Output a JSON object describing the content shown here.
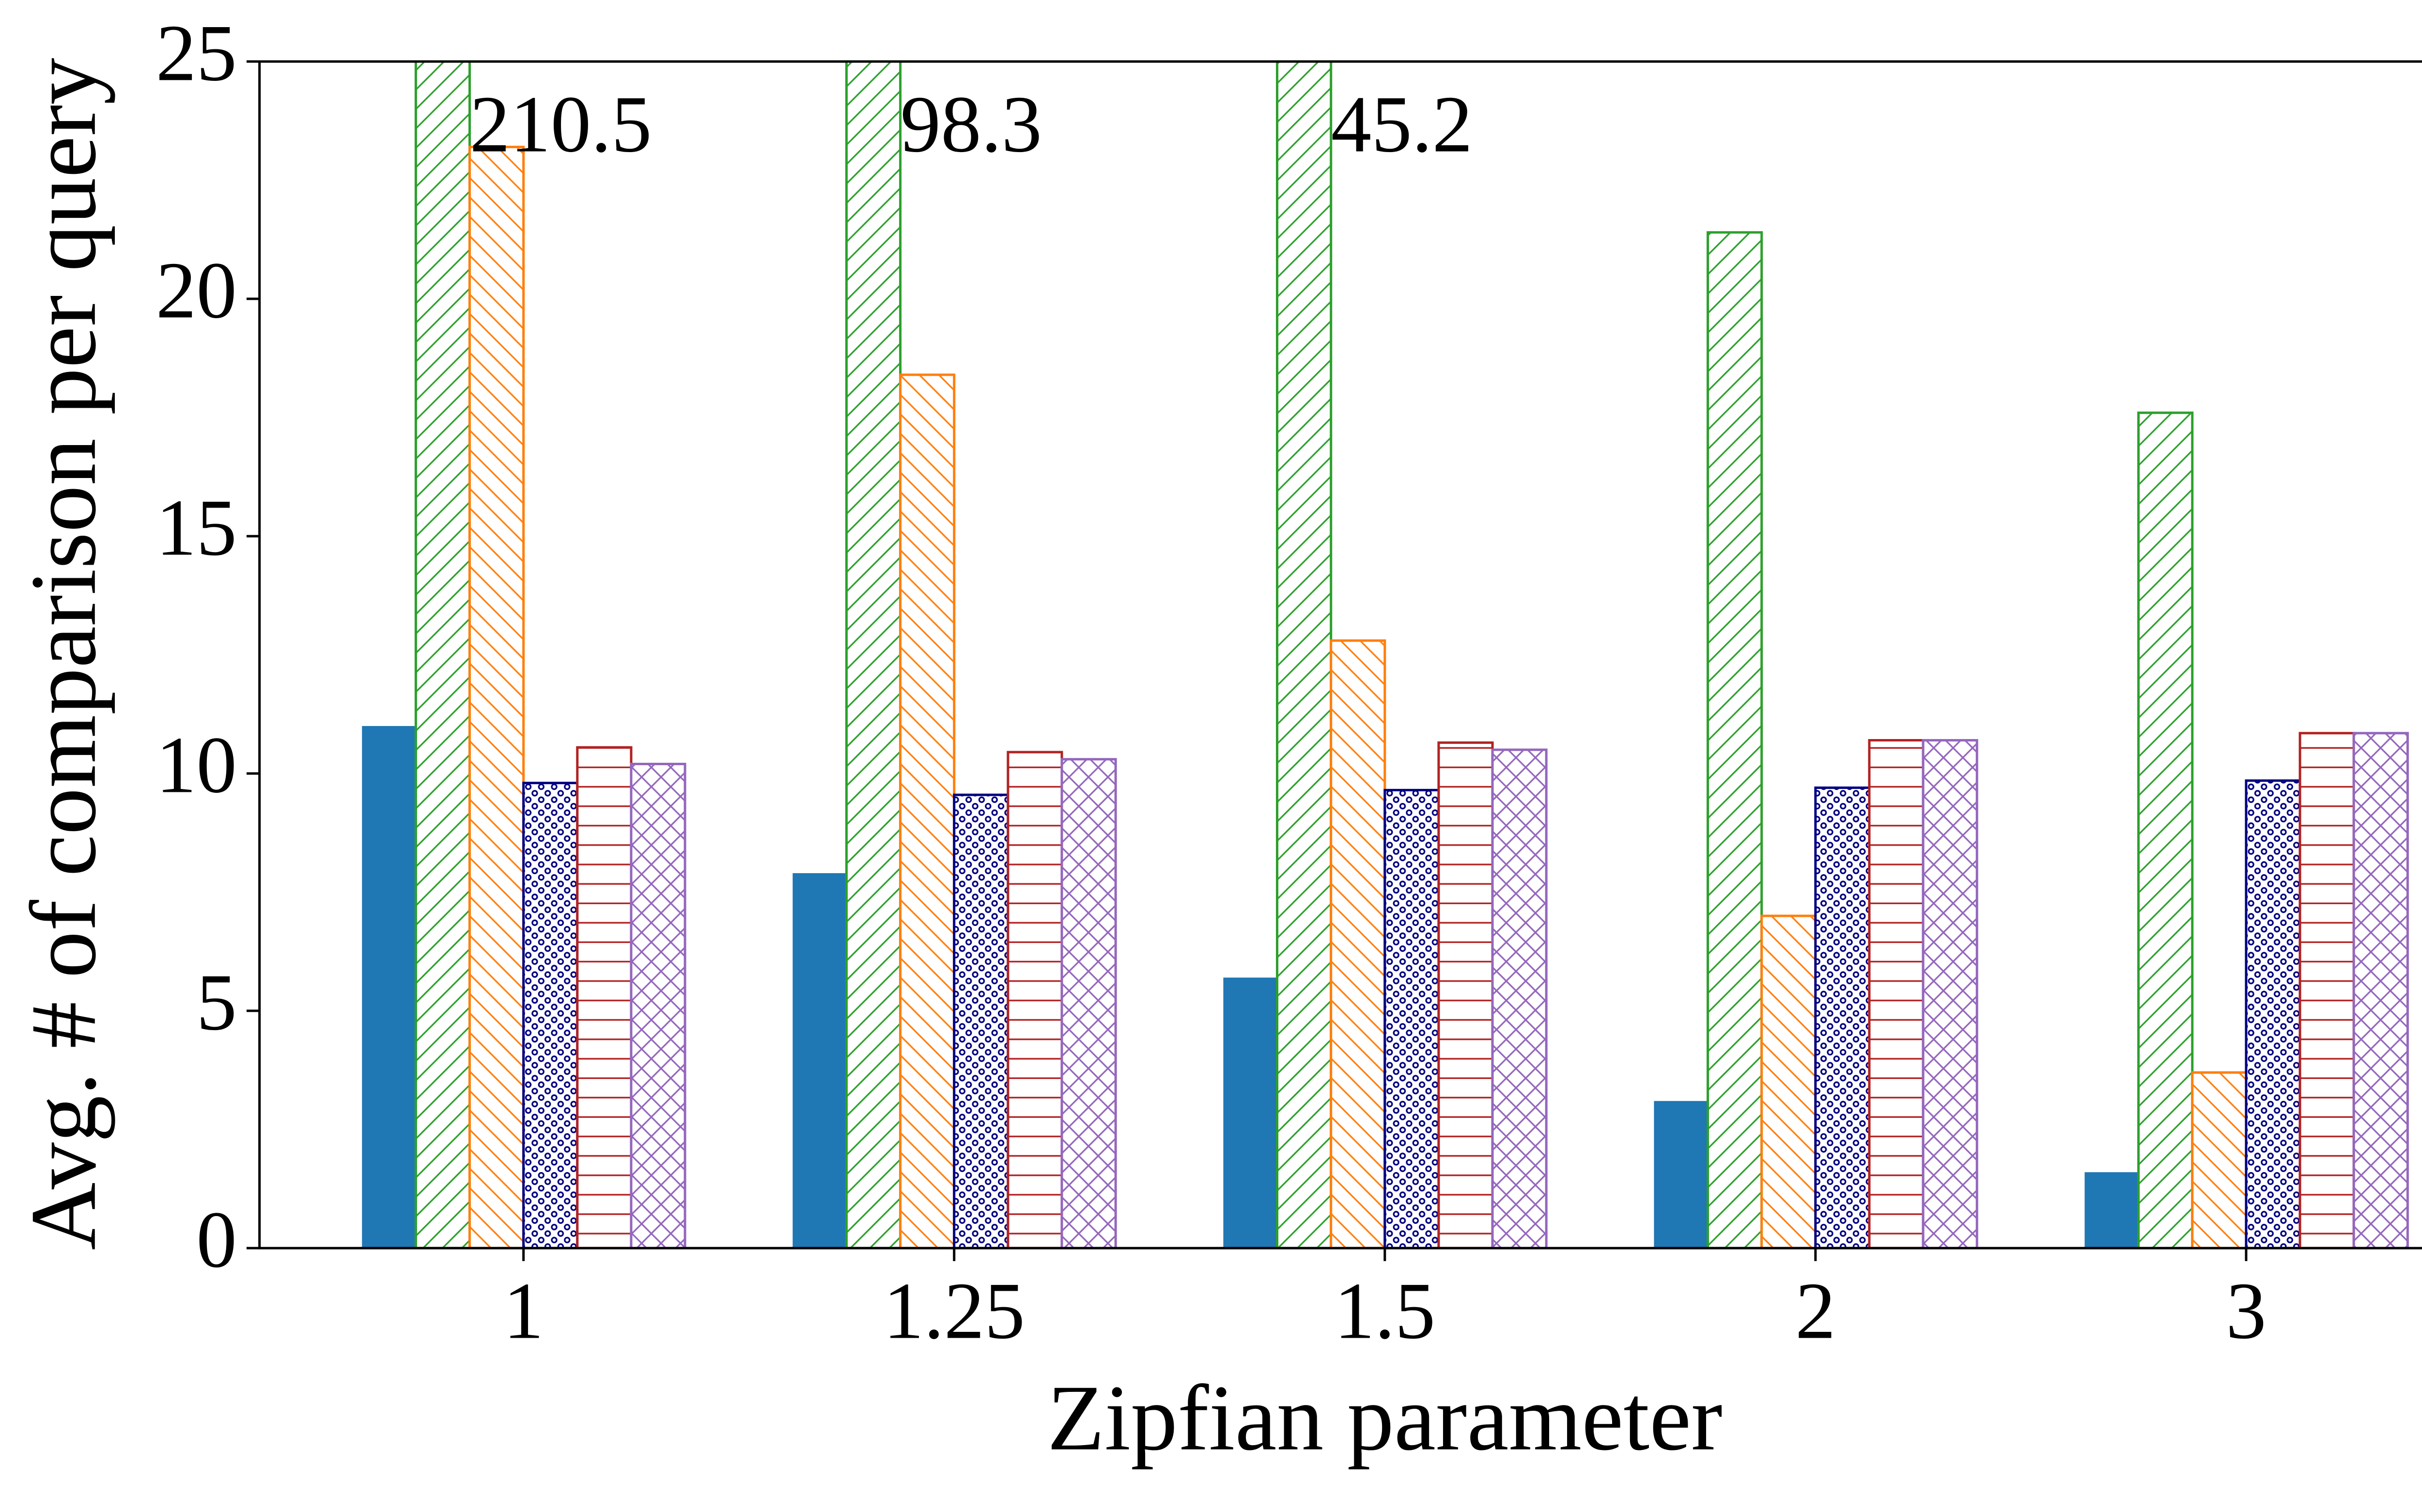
{
  "chart_data": {
    "type": "bar",
    "xlabel": "Zipfian parameter",
    "ylabel": "Avg. # of comparison per query",
    "categories": [
      "1",
      "1.25",
      "1.5",
      "2",
      "3"
    ],
    "ylim": [
      0,
      25
    ],
    "yticks": [
      0,
      5,
      10,
      15,
      20,
      25
    ],
    "series": [
      {
        "color": "#1f77b4",
        "hatch": "solid",
        "values": [
          11.0,
          7.9,
          5.7,
          3.1,
          1.6
        ]
      },
      {
        "color": "#2ca02c",
        "hatch": "/",
        "values": [
          210.5,
          98.3,
          45.2,
          21.4,
          17.6
        ],
        "value_labels": [
          "210.5",
          "98.3",
          "45.2",
          null,
          null
        ]
      },
      {
        "color": "#ff7f0e",
        "hatch": "\\",
        "values": [
          23.2,
          18.4,
          12.8,
          7.0,
          3.7
        ]
      },
      {
        "color": "#000080",
        "hatch": "o",
        "values": [
          9.8,
          9.55,
          9.65,
          9.7,
          9.85
        ]
      },
      {
        "color": "#b22222",
        "hatch": "-",
        "values": [
          10.55,
          10.45,
          10.65,
          10.7,
          10.85
        ]
      },
      {
        "color": "#9467bd",
        "hatch": "x",
        "values": [
          10.2,
          10.3,
          10.5,
          10.7,
          10.85
        ]
      }
    ]
  }
}
